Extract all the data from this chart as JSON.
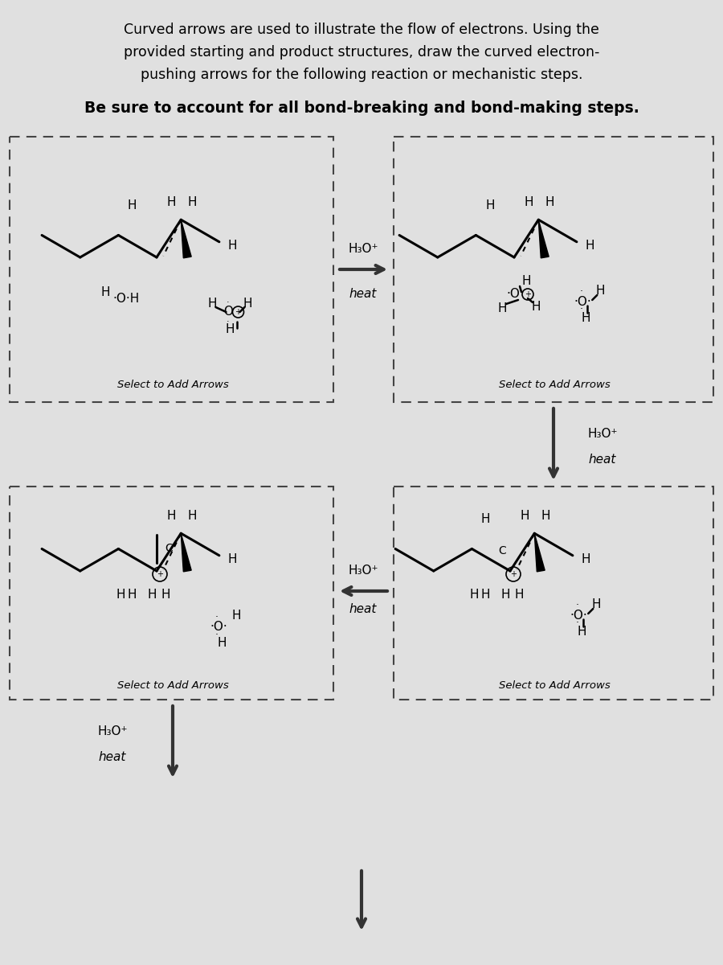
{
  "title_line1": "Curved arrows are used to illustrate the flow of electrons. Using the",
  "title_line2": "provided starting and product structures, draw the curved electron-",
  "title_line3": "pushing arrows for the following reaction or mechanistic steps.",
  "subtitle": "Be sure to account for all bond-breaking and bond-making steps.",
  "bg_color": "#e0e0e0",
  "select_text": "Select to Add Arrows",
  "h3o_label": "H₃O⁺",
  "heat_label": "heat"
}
